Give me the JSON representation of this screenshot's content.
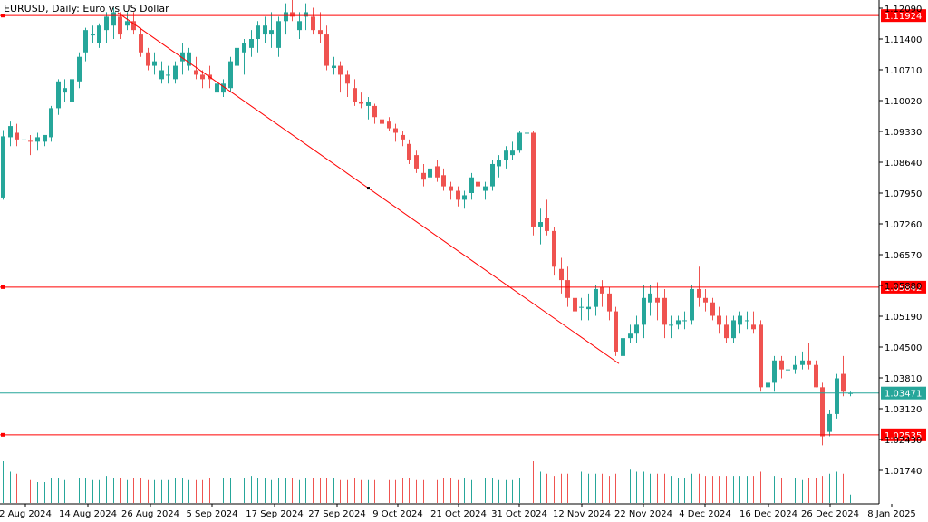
{
  "title": "EURUSD, Daily:  Euro vs US Dollar",
  "colors": {
    "bull": "#26a69a",
    "bear": "#ef5350",
    "line": "#ff0000",
    "grid": "#000000",
    "bg": "#ffffff"
  },
  "price_levels": [
    {
      "label": "1.11924",
      "value": 1.11924,
      "color": "#ff0000"
    },
    {
      "label": "1.05842",
      "value": 1.05842,
      "color": "#ff0000"
    },
    {
      "label": "1.03471",
      "value": 1.03471,
      "color": "#26a69a"
    },
    {
      "label": "1.02535",
      "value": 1.02535,
      "color": "#ff0000"
    }
  ],
  "chart_data": {
    "type": "candlestick",
    "symbol": "EURUSD",
    "timeframe": "Daily",
    "y_ticks": [
      "1.12090",
      "1.11400",
      "1.10710",
      "1.10020",
      "1.09330",
      "1.08640",
      "1.07950",
      "1.07260",
      "1.06570",
      "1.05880",
      "1.05190",
      "1.04500",
      "1.03810",
      "1.03120",
      "1.02430",
      "1.01740"
    ],
    "x_ticks": [
      "2 Aug 2024",
      "14 Aug 2024",
      "26 Aug 2024",
      "5 Sep 2024",
      "17 Sep 2024",
      "27 Sep 2024",
      "9 Oct 2024",
      "21 Oct 2024",
      "31 Oct 2024",
      "12 Nov 2024",
      "22 Nov 2024",
      "4 Dec 2024",
      "16 Dec 2024",
      "26 Dec 2024",
      "8 Jan 2025"
    ],
    "trendline": {
      "from": {
        "date": "26 Aug 2024",
        "value": 1.1199
      },
      "to": {
        "date": "22 Nov 2024",
        "value": 1.0413
      }
    },
    "candles": [
      [
        1.0785,
        1.0936,
        1.078,
        1.0922,
        20
      ],
      [
        1.092,
        1.0955,
        1.09,
        1.0945,
        15
      ],
      [
        1.093,
        1.095,
        1.09,
        1.0915,
        14
      ],
      [
        1.0915,
        1.093,
        1.09,
        1.0915,
        12
      ],
      [
        1.0912,
        1.0925,
        1.088,
        1.091,
        11
      ],
      [
        1.091,
        1.093,
        1.089,
        1.092,
        10
      ],
      [
        1.091,
        1.0925,
        1.09,
        1.0925,
        10
      ],
      [
        1.092,
        1.099,
        1.091,
        1.0985,
        12
      ],
      [
        1.0985,
        1.105,
        1.097,
        1.1045,
        12
      ],
      [
        1.102,
        1.105,
        1.1,
        1.103,
        11
      ],
      [
        1.1,
        1.106,
        1.099,
        1.105,
        11
      ],
      [
        1.1045,
        1.111,
        1.103,
        1.11,
        12
      ],
      [
        1.111,
        1.1165,
        1.109,
        1.116,
        12
      ],
      [
        1.115,
        1.117,
        1.113,
        1.115,
        11
      ],
      [
        1.113,
        1.1175,
        1.112,
        1.117,
        11
      ],
      [
        1.116,
        1.12,
        1.113,
        1.119,
        13
      ],
      [
        1.117,
        1.121,
        1.114,
        1.12,
        12
      ],
      [
        1.119,
        1.12,
        1.114,
        1.115,
        12
      ],
      [
        1.117,
        1.12,
        1.116,
        1.118,
        11
      ],
      [
        1.118,
        1.12,
        1.115,
        1.116,
        12
      ],
      [
        1.115,
        1.1165,
        1.11,
        1.111,
        12
      ],
      [
        1.111,
        1.112,
        1.107,
        1.108,
        11
      ],
      [
        1.108,
        1.111,
        1.106,
        1.109,
        11
      ],
      [
        1.105,
        1.109,
        1.104,
        1.107,
        11
      ],
      [
        1.106,
        1.108,
        1.104,
        1.106,
        11
      ],
      [
        1.105,
        1.109,
        1.104,
        1.108,
        12
      ],
      [
        1.109,
        1.113,
        1.106,
        1.111,
        12
      ],
      [
        1.108,
        1.112,
        1.107,
        1.111,
        11
      ],
      [
        1.107,
        1.11,
        1.105,
        1.106,
        11
      ],
      [
        1.106,
        1.107,
        1.103,
        1.105,
        11
      ],
      [
        1.106,
        1.108,
        1.103,
        1.105,
        12
      ],
      [
        1.102,
        1.107,
        1.101,
        1.104,
        11
      ],
      [
        1.102,
        1.105,
        1.101,
        1.104,
        12
      ],
      [
        1.103,
        1.11,
        1.102,
        1.109,
        12
      ],
      [
        1.108,
        1.113,
        1.107,
        1.112,
        11
      ],
      [
        1.111,
        1.114,
        1.106,
        1.113,
        12
      ],
      [
        1.112,
        1.116,
        1.11,
        1.114,
        13
      ],
      [
        1.114,
        1.118,
        1.111,
        1.117,
        12
      ],
      [
        1.115,
        1.119,
        1.113,
        1.117,
        12
      ],
      [
        1.115,
        1.12,
        1.112,
        1.116,
        11
      ],
      [
        1.112,
        1.119,
        1.11,
        1.118,
        12
      ],
      [
        1.118,
        1.122,
        1.115,
        1.12,
        12
      ],
      [
        1.12,
        1.123,
        1.118,
        1.119,
        12
      ],
      [
        1.116,
        1.12,
        1.114,
        1.118,
        11
      ],
      [
        1.119,
        1.122,
        1.116,
        1.12,
        12
      ],
      [
        1.119,
        1.121,
        1.115,
        1.116,
        12
      ],
      [
        1.116,
        1.12,
        1.113,
        1.115,
        12
      ],
      [
        1.115,
        1.117,
        1.107,
        1.108,
        12
      ],
      [
        1.1075,
        1.11,
        1.106,
        1.108,
        12
      ],
      [
        1.108,
        1.109,
        1.102,
        1.106,
        11
      ],
      [
        1.106,
        1.107,
        1.101,
        1.104,
        11
      ],
      [
        1.103,
        1.105,
        1.099,
        1.1,
        12
      ],
      [
        1.1,
        1.102,
        1.0985,
        1.0995,
        11
      ],
      [
        1.099,
        1.101,
        1.096,
        1.1,
        11
      ],
      [
        1.099,
        1.0995,
        1.095,
        1.0965,
        11
      ],
      [
        1.096,
        1.098,
        1.093,
        1.095,
        12
      ],
      [
        1.0955,
        1.0965,
        1.0935,
        1.094,
        11
      ],
      [
        1.094,
        1.095,
        1.091,
        1.093,
        11
      ],
      [
        1.0925,
        1.0935,
        1.09,
        1.0915,
        12
      ],
      [
        1.0905,
        1.0915,
        1.086,
        1.087,
        12
      ],
      [
        1.088,
        1.089,
        1.084,
        1.085,
        11
      ],
      [
        1.084,
        1.086,
        1.081,
        1.0825,
        11
      ],
      [
        1.083,
        1.086,
        1.081,
        1.085,
        12
      ],
      [
        1.0855,
        1.087,
        1.082,
        1.083,
        11
      ],
      [
        1.0835,
        1.085,
        1.08,
        1.081,
        12
      ],
      [
        1.081,
        1.082,
        1.078,
        1.08,
        12
      ],
      [
        1.08,
        1.081,
        1.0765,
        1.078,
        11
      ],
      [
        1.078,
        1.08,
        1.076,
        1.079,
        12
      ],
      [
        1.0795,
        1.084,
        1.078,
        1.083,
        11
      ],
      [
        1.082,
        1.084,
        1.08,
        1.081,
        11
      ],
      [
        1.08,
        1.082,
        1.078,
        1.081,
        12
      ],
      [
        1.081,
        1.087,
        1.08,
        1.086,
        12
      ],
      [
        1.0855,
        1.088,
        1.083,
        1.087,
        11
      ],
      [
        1.087,
        1.09,
        1.085,
        1.089,
        11
      ],
      [
        1.088,
        1.091,
        1.087,
        1.089,
        11
      ],
      [
        1.089,
        1.0935,
        1.0885,
        1.093,
        12
      ],
      [
        1.093,
        1.094,
        1.09,
        1.093,
        11
      ],
      [
        1.093,
        1.0935,
        1.07,
        1.072,
        20
      ],
      [
        1.072,
        1.076,
        1.068,
        1.073,
        15
      ],
      [
        1.074,
        1.078,
        1.07,
        1.071,
        14
      ],
      [
        1.071,
        1.072,
        1.061,
        1.063,
        13
      ],
      [
        1.0625,
        1.065,
        1.057,
        1.06,
        14
      ],
      [
        1.06,
        1.063,
        1.054,
        1.056,
        14
      ],
      [
        1.056,
        1.058,
        1.05,
        1.053,
        15
      ],
      [
        1.054,
        1.056,
        1.051,
        1.054,
        15
      ],
      [
        1.0535,
        1.057,
        1.051,
        1.054,
        14
      ],
      [
        1.054,
        1.059,
        1.052,
        1.058,
        14
      ],
      [
        1.0585,
        1.06,
        1.054,
        1.057,
        14
      ],
      [
        1.057,
        1.0585,
        1.051,
        1.053,
        13
      ],
      [
        1.053,
        1.054,
        1.043,
        1.044,
        14
      ],
      [
        1.043,
        1.056,
        1.033,
        1.047,
        24
      ],
      [
        1.047,
        1.05,
        1.046,
        1.048,
        16
      ],
      [
        1.048,
        1.052,
        1.046,
        1.05,
        15
      ],
      [
        1.05,
        1.059,
        1.047,
        1.056,
        15
      ],
      [
        1.055,
        1.059,
        1.052,
        1.057,
        14
      ],
      [
        1.056,
        1.0595,
        1.051,
        1.055,
        14
      ],
      [
        1.056,
        1.058,
        1.047,
        1.05,
        14
      ],
      [
        1.05,
        1.052,
        1.047,
        1.05,
        13
      ],
      [
        1.05,
        1.052,
        1.049,
        1.051,
        12
      ],
      [
        1.051,
        1.053,
        1.049,
        1.051,
        12
      ],
      [
        1.051,
        1.059,
        1.05,
        1.058,
        14
      ],
      [
        1.058,
        1.063,
        1.054,
        1.056,
        14
      ],
      [
        1.056,
        1.058,
        1.053,
        1.055,
        13
      ],
      [
        1.055,
        1.056,
        1.051,
        1.052,
        13
      ],
      [
        1.052,
        1.054,
        1.048,
        1.05,
        13
      ],
      [
        1.05,
        1.052,
        1.046,
        1.047,
        13
      ],
      [
        1.047,
        1.052,
        1.046,
        1.051,
        13
      ],
      [
        1.05,
        1.053,
        1.048,
        1.052,
        13
      ],
      [
        1.051,
        1.053,
        1.049,
        1.051,
        13
      ],
      [
        1.05,
        1.053,
        1.048,
        1.049,
        13
      ],
      [
        1.05,
        1.051,
        1.035,
        1.036,
        15
      ],
      [
        1.036,
        1.038,
        1.034,
        1.037,
        14
      ],
      [
        1.037,
        1.043,
        1.035,
        1.042,
        13
      ],
      [
        1.042,
        1.043,
        1.038,
        1.04,
        12
      ],
      [
        1.04,
        1.041,
        1.039,
        1.04,
        11
      ],
      [
        1.04,
        1.043,
        1.039,
        1.041,
        12
      ],
      [
        1.041,
        1.044,
        1.04,
        1.042,
        11
      ],
      [
        1.042,
        1.046,
        1.04,
        1.041,
        12
      ],
      [
        1.041,
        1.042,
        1.036,
        1.036,
        12
      ],
      [
        1.036,
        1.037,
        1.023,
        1.025,
        13
      ],
      [
        1.026,
        1.031,
        1.025,
        1.03,
        14
      ],
      [
        1.03,
        1.039,
        1.029,
        1.038,
        15
      ],
      [
        1.039,
        1.043,
        1.034,
        1.035,
        14
      ],
      [
        1.0347,
        1.035,
        1.034,
        1.0347,
        4
      ]
    ]
  }
}
